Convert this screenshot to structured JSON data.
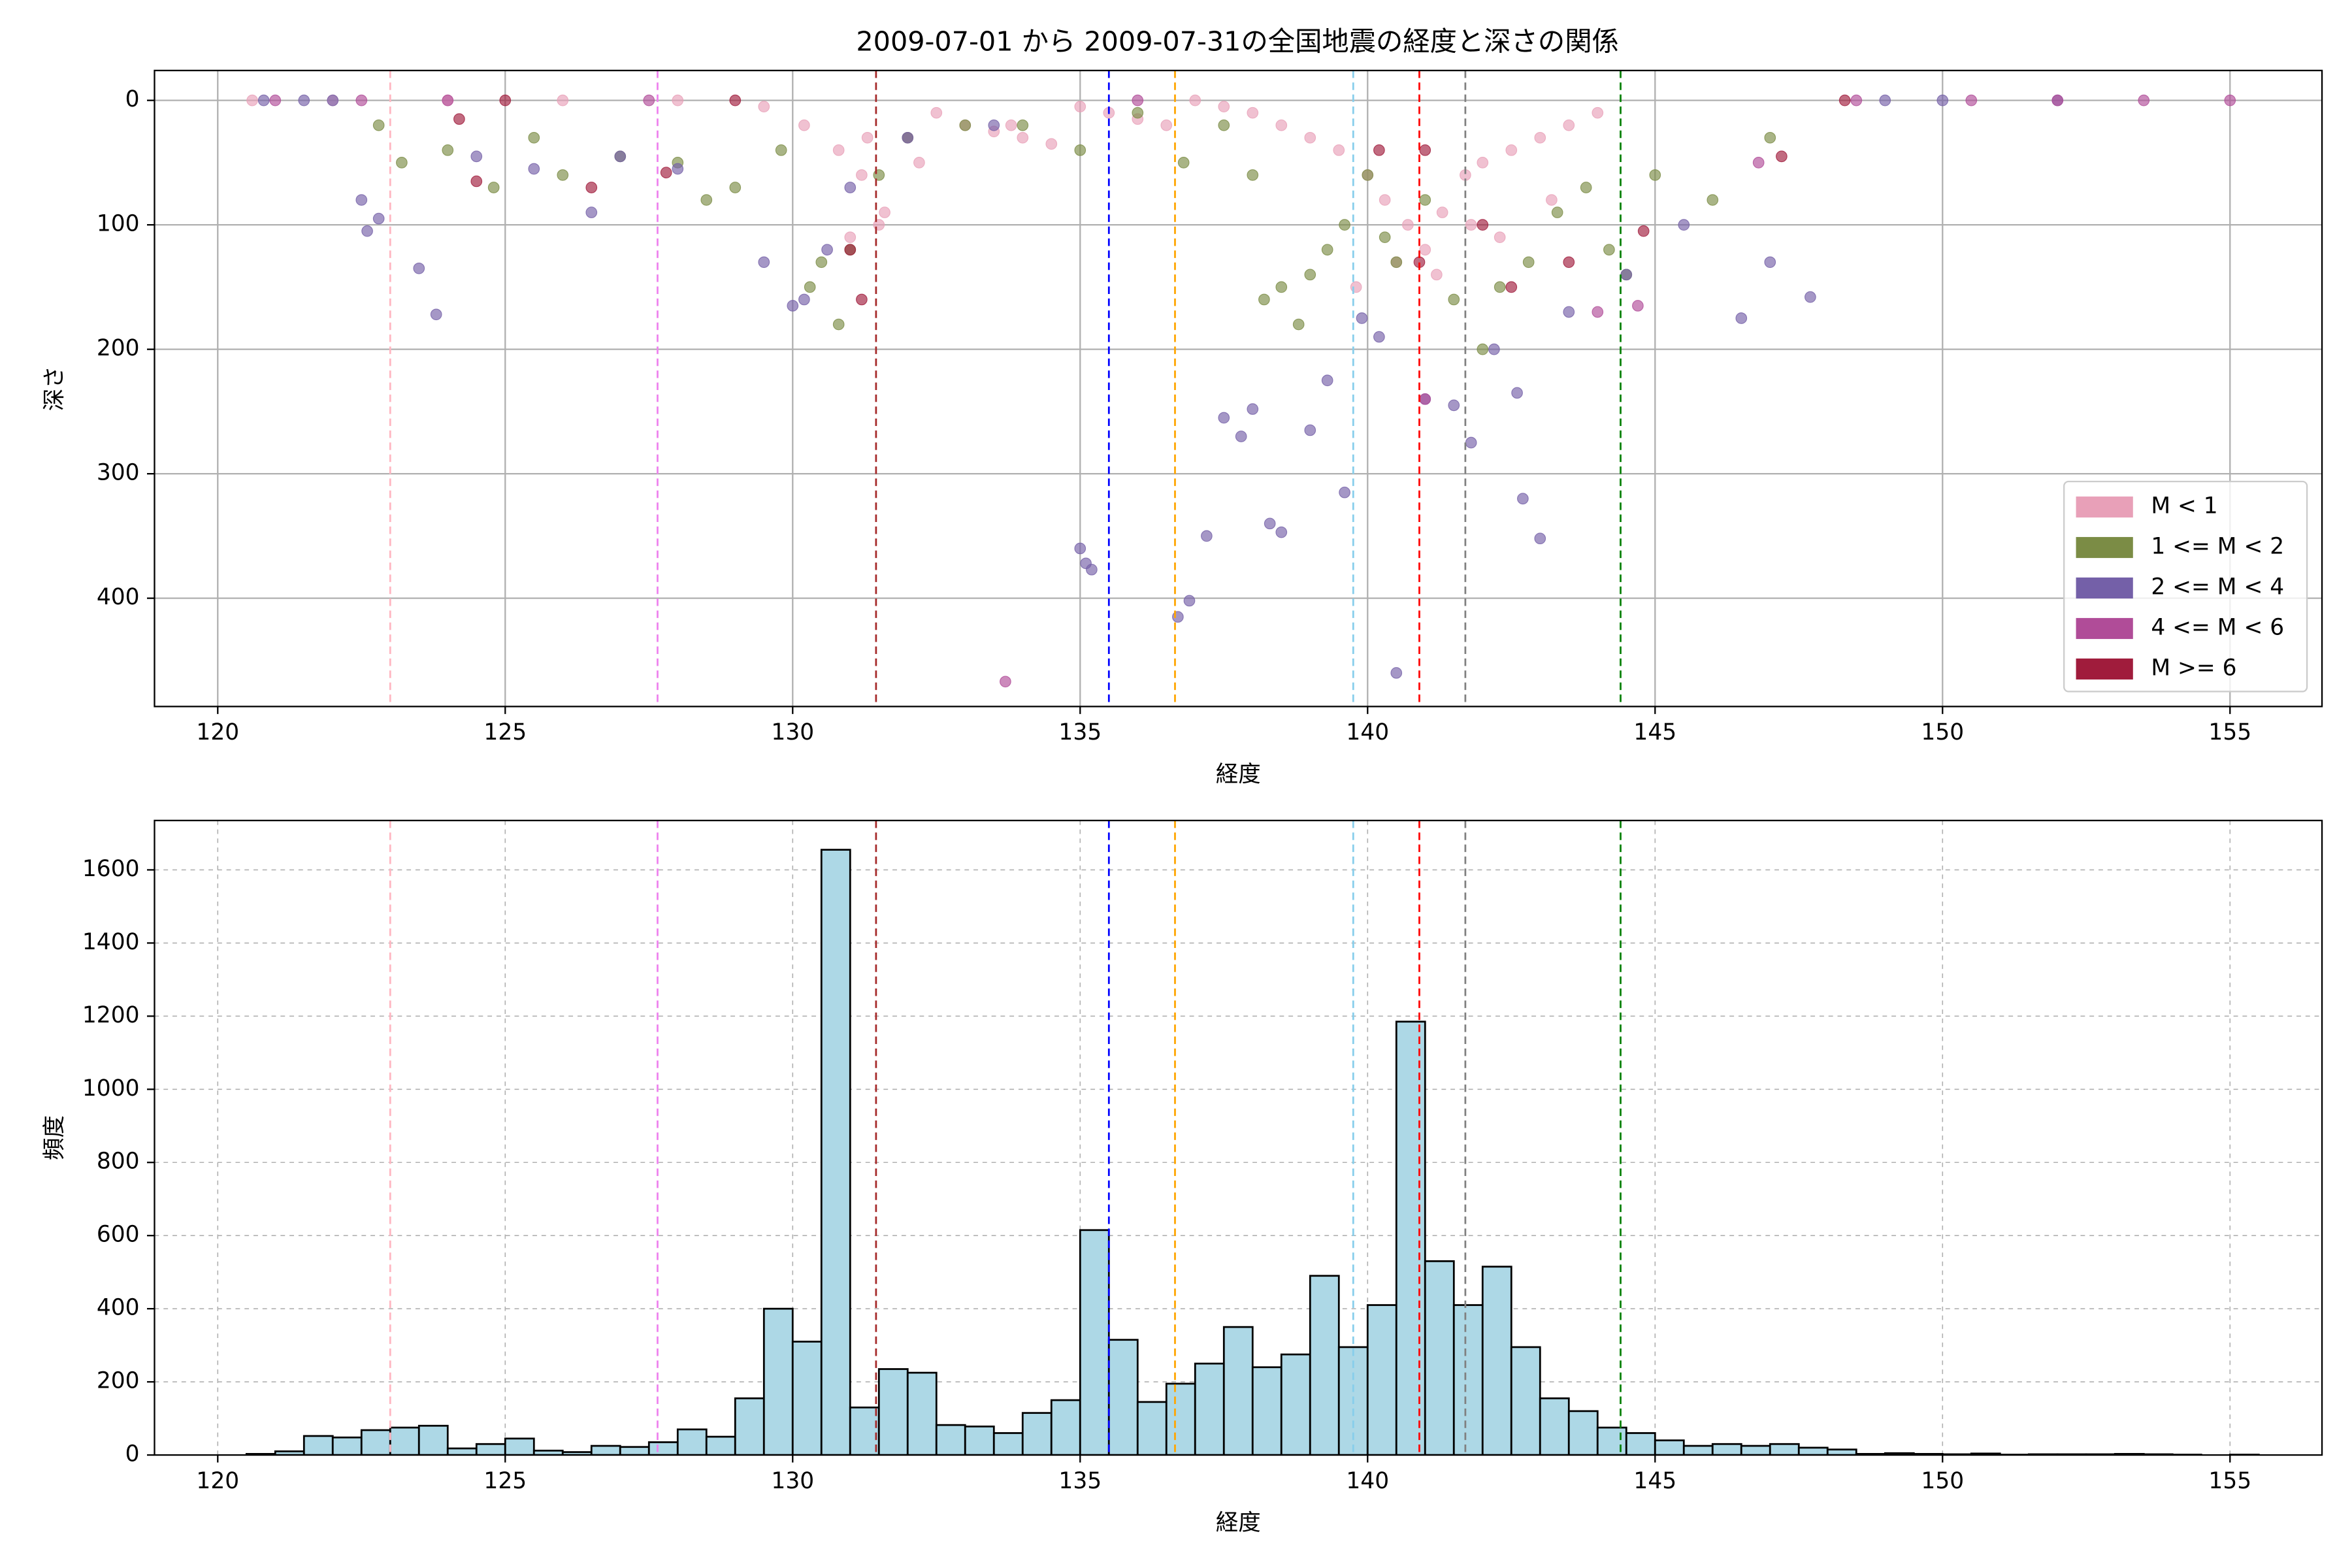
{
  "chart_data": [
    {
      "type": "scatter",
      "title": "2009-07-01 から 2009-07-31の全国地震の経度と深さの関係",
      "xlabel": "経度",
      "ylabel": "深さ",
      "xlim": [
        118.9,
        156.6
      ],
      "ylim": [
        487,
        -24
      ],
      "xticks": [
        120,
        125,
        130,
        135,
        140,
        145,
        150,
        155
      ],
      "yticks": [
        0,
        100,
        200,
        300,
        400
      ],
      "grid": true,
      "grid_style": "solid",
      "legend": "lower right",
      "vlines": [
        {
          "x": 123.0,
          "color": "#ffb6c1"
        },
        {
          "x": 127.65,
          "color": "#ee82ee"
        },
        {
          "x": 131.45,
          "color": "#a52a2a"
        },
        {
          "x": 135.5,
          "color": "#0000ff"
        },
        {
          "x": 136.65,
          "color": "#ffa500"
        },
        {
          "x": 139.75,
          "color": "#87ceeb"
        },
        {
          "x": 140.9,
          "color": "#ff0000"
        },
        {
          "x": 141.7,
          "color": "#808080"
        },
        {
          "x": 144.4,
          "color": "#008000"
        }
      ],
      "series": [
        {
          "name": "M < 1",
          "color": "#e8a0b8",
          "x": [
            120.6,
            122,
            124,
            126,
            128,
            129.5,
            130.2,
            130.8,
            131.2,
            131.6,
            132,
            132.5,
            133,
            133.5,
            134,
            134.5,
            135,
            135.5,
            136,
            136.5,
            137,
            137.5,
            138,
            138.5,
            139,
            139.5,
            140,
            140.3,
            140.7,
            141,
            141.3,
            141.7,
            142,
            142.5,
            143,
            143.5,
            144,
            131,
            131.5,
            132.2,
            140.5,
            141.2,
            142.3,
            139.8,
            141.8,
            143.2,
            131.3,
            133.8
          ],
          "values": [
            0,
            0,
            0,
            0,
            0,
            5,
            20,
            40,
            60,
            90,
            30,
            10,
            20,
            25,
            30,
            35,
            5,
            10,
            15,
            20,
            0,
            5,
            10,
            20,
            30,
            40,
            60,
            80,
            100,
            120,
            90,
            60,
            50,
            40,
            30,
            20,
            10,
            110,
            100,
            50,
            130,
            140,
            110,
            150,
            100,
            80,
            30,
            20
          ]
        },
        {
          "name": "1 <= M < 2",
          "color": "#7b8c45",
          "x": [
            122.8,
            123.2,
            124,
            124.8,
            125.5,
            126,
            127,
            128,
            128.5,
            129,
            129.8,
            130.3,
            130.5,
            130.8,
            131,
            131.5,
            132,
            133,
            134,
            135,
            136,
            136.8,
            137.5,
            138,
            138.2,
            138.5,
            138.8,
            139,
            139.3,
            139.6,
            140,
            140.3,
            140.5,
            141,
            141.5,
            142,
            142.3,
            142.8,
            143.3,
            143.8,
            144.2,
            144.5,
            145,
            146,
            147
          ],
          "values": [
            20,
            50,
            40,
            70,
            30,
            60,
            45,
            50,
            80,
            70,
            40,
            150,
            130,
            180,
            120,
            60,
            30,
            20,
            20,
            40,
            10,
            50,
            20,
            60,
            160,
            150,
            180,
            140,
            120,
            100,
            60,
            110,
            130,
            80,
            160,
            200,
            150,
            130,
            90,
            70,
            120,
            140,
            60,
            80,
            30
          ]
        },
        {
          "name": "2 <= M < 4",
          "color": "#7460a8",
          "x": [
            120.8,
            121.5,
            122,
            122.5,
            122.6,
            122.8,
            123.5,
            123.8,
            124.5,
            125.5,
            126.5,
            127,
            128,
            129.5,
            130,
            130.2,
            130.6,
            131,
            132,
            133.5,
            135,
            135.1,
            135.2,
            136.7,
            136.9,
            137.2,
            137.5,
            137.8,
            138,
            138.3,
            138.5,
            139,
            139.3,
            139.6,
            139.9,
            140.2,
            140.5,
            141,
            141.5,
            141.8,
            142.2,
            142.6,
            142.7,
            143,
            143.5,
            144.5,
            145.5,
            146.5,
            147,
            147.7,
            150,
            152,
            149
          ],
          "values": [
            0,
            0,
            0,
            80,
            105,
            95,
            135,
            172,
            45,
            55,
            90,
            45,
            55,
            130,
            165,
            160,
            120,
            70,
            30,
            20,
            360,
            372,
            377,
            415,
            402,
            350,
            255,
            270,
            248,
            340,
            347,
            265,
            225,
            315,
            175,
            190,
            460,
            240,
            245,
            275,
            200,
            235,
            320,
            352,
            170,
            140,
            100,
            175,
            130,
            158,
            0,
            0,
            0
          ]
        },
        {
          "name": "4 <= M < 6",
          "color": "#b04c98",
          "x": [
            121,
            122.5,
            124,
            133.7,
            141,
            144,
            144.7,
            146.8,
            152,
            153.5,
            155,
            148.5,
            150.5,
            127.5,
            136
          ],
          "values": [
            0,
            0,
            0,
            467,
            240,
            170,
            165,
            50,
            0,
            0,
            0,
            0,
            0,
            0,
            0
          ]
        },
        {
          "name": "M >= 6",
          "color": "#a01c3c",
          "x": [
            124.2,
            124.5,
            126.5,
            127.8,
            131,
            131.2,
            140.2,
            140.9,
            141,
            142,
            143.5,
            144.8,
            147.2,
            148.3,
            125,
            129,
            142.5
          ],
          "values": [
            15,
            65,
            70,
            58,
            120,
            160,
            40,
            130,
            40,
            100,
            130,
            105,
            45,
            0,
            0,
            0,
            150
          ]
        }
      ]
    },
    {
      "type": "histogram",
      "xlabel": "経度",
      "ylabel": "頻度",
      "xlim": [
        118.9,
        156.6
      ],
      "ylim": [
        0,
        1735
      ],
      "xticks": [
        120,
        125,
        130,
        135,
        140,
        145,
        150,
        155
      ],
      "yticks": [
        0,
        200,
        400,
        600,
        800,
        1000,
        1200,
        1400,
        1600
      ],
      "grid": true,
      "grid_style": "dashed",
      "color": "#add8e6",
      "edgecolor": "#000000",
      "vlines": [
        {
          "x": 123.0,
          "color": "#ffb6c1"
        },
        {
          "x": 127.65,
          "color": "#ee82ee"
        },
        {
          "x": 131.45,
          "color": "#a52a2a"
        },
        {
          "x": 135.5,
          "color": "#0000ff"
        },
        {
          "x": 136.65,
          "color": "#ffa500"
        },
        {
          "x": 139.75,
          "color": "#87ceeb"
        },
        {
          "x": 140.9,
          "color": "#ff0000"
        },
        {
          "x": 141.7,
          "color": "#808080"
        },
        {
          "x": 144.4,
          "color": "#008000"
        }
      ],
      "bins": [
        120.5,
        121,
        121.5,
        122,
        122.5,
        123,
        123.5,
        124,
        124.5,
        125,
        125.5,
        126,
        126.5,
        127,
        127.5,
        128,
        128.5,
        129,
        129.5,
        130,
        130.5,
        131,
        131.5,
        132,
        132.5,
        133,
        133.5,
        134,
        134.5,
        135,
        135.5,
        136,
        136.5,
        137,
        137.5,
        138,
        138.5,
        139,
        139.5,
        140,
        140.5,
        141,
        141.5,
        142,
        142.5,
        143,
        143.5,
        144,
        144.5,
        145,
        145.5,
        146,
        146.5,
        147,
        147.5,
        148,
        148.5,
        149,
        149.5,
        150,
        150.5,
        151,
        151.5,
        152,
        152.5,
        153,
        153.5,
        154,
        154.5,
        155,
        155.5
      ],
      "values": [
        3,
        10,
        52,
        48,
        68,
        75,
        80,
        18,
        30,
        45,
        12,
        8,
        25,
        22,
        35,
        70,
        50,
        155,
        400,
        310,
        1655,
        130,
        235,
        225,
        82,
        78,
        60,
        115,
        150,
        615,
        315,
        145,
        195,
        250,
        350,
        240,
        275,
        490,
        295,
        410,
        1185,
        530,
        410,
        515,
        295,
        155,
        120,
        75,
        60,
        40,
        25,
        30,
        25,
        30,
        20,
        15,
        3,
        5,
        3,
        2,
        4,
        1,
        2,
        2,
        2,
        3,
        2,
        1,
        0,
        1
      ]
    }
  ]
}
